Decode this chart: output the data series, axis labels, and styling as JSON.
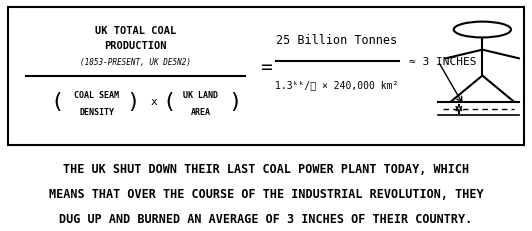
{
  "bg_color": "#ffffff",
  "border_color": "#000000",
  "text_color": "#000000",
  "top_panel_bg": "#ffffff",
  "bottom_panel_bg": "#ffffff",
  "numerator_line1": "UK TOTAL COAL",
  "numerator_line2": "PRODUCTION",
  "numerator_line3": "(1853-PRESENT, UK DE5N2)",
  "denom_left_line1": "COAL SEAM",
  "denom_left_line2": "DENSITY",
  "denom_right_line1": "UK LAND",
  "denom_right_line2": "AREA",
  "equals": "=",
  "rhs_numerator": "25 Billion Tonnes",
  "rhs_denominator": "1.3ᵏᵏ/ℓ × 240,000 km²",
  "approx": "≈ 3 INCHES",
  "caption_line1": "THE UK SHUT DOWN THEIR LAST COAL POWER PLANT TODAY, WHICH",
  "caption_line2": "MEANS THAT OVER THE COURSE OF THE INDUSTRIAL REVOLUTION, THEY",
  "caption_line3": "DUG UP AND BURNED AN AVERAGE OF 3 INCHES OF THEIR COUNTRY.",
  "figwidth": 5.32,
  "figheight": 2.32,
  "dpi": 100
}
